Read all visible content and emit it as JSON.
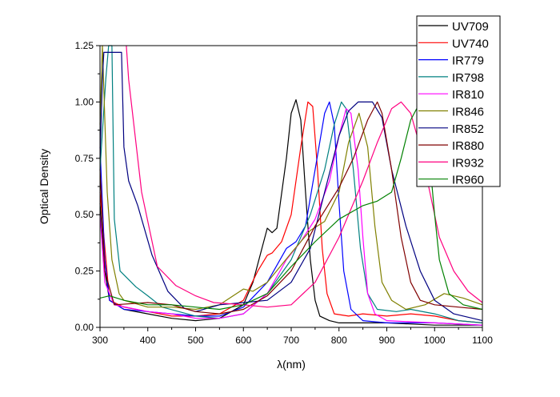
{
  "chart_data": {
    "type": "line",
    "title": "",
    "xlabel": "λ(nm)",
    "ylabel": "Optical Density",
    "xlim": [
      300,
      1100
    ],
    "ylim": [
      0,
      1.25
    ],
    "xticks": [
      "300",
      "400",
      "500",
      "600",
      "700",
      "800",
      "900",
      "1000",
      "1100"
    ],
    "yticks": [
      "0.00",
      "0.25",
      "0.50",
      "0.75",
      "1.00",
      "1.25"
    ],
    "grid": false,
    "legend_position": "top-right",
    "series": [
      {
        "name": "UV709",
        "color": "#000000",
        "x": [
          300,
          310,
          320,
          350,
          400,
          450,
          500,
          550,
          600,
          620,
          640,
          650,
          660,
          670,
          690,
          700,
          710,
          720,
          730,
          740,
          750,
          760,
          780,
          800,
          900,
          1000,
          1100
        ],
        "y": [
          0.55,
          0.25,
          0.12,
          0.08,
          0.06,
          0.04,
          0.03,
          0.04,
          0.1,
          0.2,
          0.36,
          0.44,
          0.42,
          0.44,
          0.75,
          0.95,
          1.01,
          0.92,
          0.6,
          0.3,
          0.12,
          0.05,
          0.03,
          0.02,
          0.02,
          0.01,
          0.01
        ]
      },
      {
        "name": "UV740",
        "color": "#ff0000",
        "x": [
          300,
          320,
          350,
          400,
          450,
          500,
          550,
          600,
          630,
          650,
          660,
          680,
          700,
          720,
          735,
          745,
          755,
          765,
          775,
          790,
          820,
          850,
          900,
          950,
          1000,
          1050,
          1100
        ],
        "y": [
          0.6,
          0.12,
          0.09,
          0.07,
          0.05,
          0.05,
          0.06,
          0.12,
          0.25,
          0.32,
          0.33,
          0.38,
          0.5,
          0.8,
          1.0,
          0.98,
          0.7,
          0.35,
          0.15,
          0.06,
          0.05,
          0.06,
          0.05,
          0.06,
          0.05,
          0.03,
          0.02
        ]
      },
      {
        "name": "IR779",
        "color": "#0000ff",
        "x": [
          300,
          310,
          320,
          350,
          400,
          450,
          500,
          550,
          600,
          650,
          690,
          710,
          730,
          750,
          770,
          780,
          790,
          800,
          810,
          825,
          850,
          900,
          1000,
          1100
        ],
        "y": [
          0.8,
          0.3,
          0.12,
          0.08,
          0.07,
          0.06,
          0.05,
          0.05,
          0.09,
          0.2,
          0.35,
          0.38,
          0.45,
          0.7,
          0.95,
          1.0,
          0.9,
          0.55,
          0.25,
          0.08,
          0.03,
          0.02,
          0.02,
          0.01
        ]
      },
      {
        "name": "IR798",
        "color": "#008080",
        "x": [
          300,
          312,
          318,
          325,
          330,
          342,
          375,
          400,
          430,
          500,
          550,
          600,
          650,
          700,
          740,
          770,
          790,
          805,
          815,
          830,
          845,
          860,
          880,
          920,
          950,
          1000,
          1050,
          1100
        ],
        "y": [
          0.7,
          1.1,
          1.25,
          1.25,
          0.48,
          0.25,
          0.18,
          0.14,
          0.09,
          0.05,
          0.04,
          0.06,
          0.15,
          0.3,
          0.5,
          0.7,
          0.9,
          1.0,
          0.97,
          0.7,
          0.35,
          0.15,
          0.08,
          0.07,
          0.08,
          0.06,
          0.03,
          0.02
        ]
      },
      {
        "name": "IR810",
        "color": "#ff00ff",
        "x": [
          300,
          310,
          330,
          400,
          450,
          500,
          550,
          600,
          650,
          690,
          720,
          750,
          780,
          800,
          815,
          825,
          840,
          850,
          860,
          875,
          900,
          1000,
          1100
        ],
        "y": [
          0.5,
          0.2,
          0.1,
          0.07,
          0.06,
          0.04,
          0.04,
          0.06,
          0.15,
          0.3,
          0.38,
          0.48,
          0.65,
          0.85,
          0.97,
          0.95,
          0.7,
          0.4,
          0.15,
          0.06,
          0.03,
          0.02,
          0.01
        ]
      },
      {
        "name": "IR846",
        "color": "#808000",
        "x": [
          300,
          305,
          315,
          325,
          340,
          350,
          400,
          450,
          500,
          550,
          600,
          620,
          650,
          700,
          740,
          770,
          800,
          820,
          842,
          860,
          875,
          890,
          910,
          940,
          980,
          1020,
          1060,
          1100
        ],
        "y": [
          0.9,
          1.25,
          0.6,
          0.3,
          0.15,
          0.12,
          0.09,
          0.09,
          0.08,
          0.1,
          0.17,
          0.16,
          0.2,
          0.33,
          0.43,
          0.47,
          0.6,
          0.82,
          0.95,
          0.8,
          0.45,
          0.2,
          0.12,
          0.08,
          0.1,
          0.15,
          0.13,
          0.1
        ]
      },
      {
        "name": "IR852",
        "color": "#000080",
        "x": [
          300,
          305,
          308,
          345,
          350,
          360,
          379,
          409,
          442,
          476,
          500,
          550,
          600,
          650,
          700,
          740,
          770,
          800,
          820,
          840,
          870,
          890,
          910,
          940,
          970,
          1000,
          1040,
          1100
        ],
        "y": [
          0.75,
          1.1,
          1.22,
          1.22,
          0.8,
          0.65,
          0.54,
          0.32,
          0.16,
          0.085,
          0.07,
          0.1,
          0.11,
          0.12,
          0.2,
          0.35,
          0.6,
          0.85,
          0.96,
          1.0,
          1.0,
          0.93,
          0.7,
          0.45,
          0.25,
          0.12,
          0.06,
          0.03
        ]
      },
      {
        "name": "IR880",
        "color": "#800000",
        "x": [
          300,
          310,
          330,
          400,
          450,
          500,
          550,
          600,
          650,
          700,
          750,
          800,
          830,
          860,
          880,
          890,
          910,
          930,
          950,
          970,
          1000,
          1050,
          1100
        ],
        "y": [
          0.7,
          0.25,
          0.1,
          0.11,
          0.1,
          0.07,
          0.06,
          0.08,
          0.14,
          0.25,
          0.45,
          0.62,
          0.75,
          0.92,
          1.0,
          0.95,
          0.7,
          0.4,
          0.2,
          0.12,
          0.1,
          0.09,
          0.08
        ]
      },
      {
        "name": "IR932",
        "color": "#ff0080",
        "x": [
          355,
          360,
          387,
          420,
          459,
          500,
          538,
          600,
          650,
          700,
          750,
          800,
          850,
          880,
          910,
          930,
          950,
          970,
          990,
          1010,
          1040,
          1070,
          1100
        ],
        "y": [
          1.25,
          1.1,
          0.6,
          0.27,
          0.185,
          0.14,
          0.11,
          0.1,
          0.09,
          0.1,
          0.2,
          0.4,
          0.65,
          0.82,
          0.97,
          1.0,
          0.95,
          0.8,
          0.6,
          0.4,
          0.25,
          0.16,
          0.11
        ]
      },
      {
        "name": "IR960",
        "color": "#008000",
        "x": [
          300,
          320,
          350,
          400,
          450,
          500,
          550,
          600,
          650,
          700,
          750,
          800,
          850,
          880,
          910,
          930,
          950,
          970,
          985,
          1000,
          1010,
          1030,
          1060,
          1100
        ],
        "y": [
          0.13,
          0.14,
          0.12,
          0.1,
          0.1,
          0.09,
          0.08,
          0.1,
          0.15,
          0.27,
          0.38,
          0.48,
          0.54,
          0.56,
          0.6,
          0.75,
          0.92,
          1.0,
          0.85,
          0.5,
          0.3,
          0.15,
          0.1,
          0.08
        ]
      }
    ]
  }
}
